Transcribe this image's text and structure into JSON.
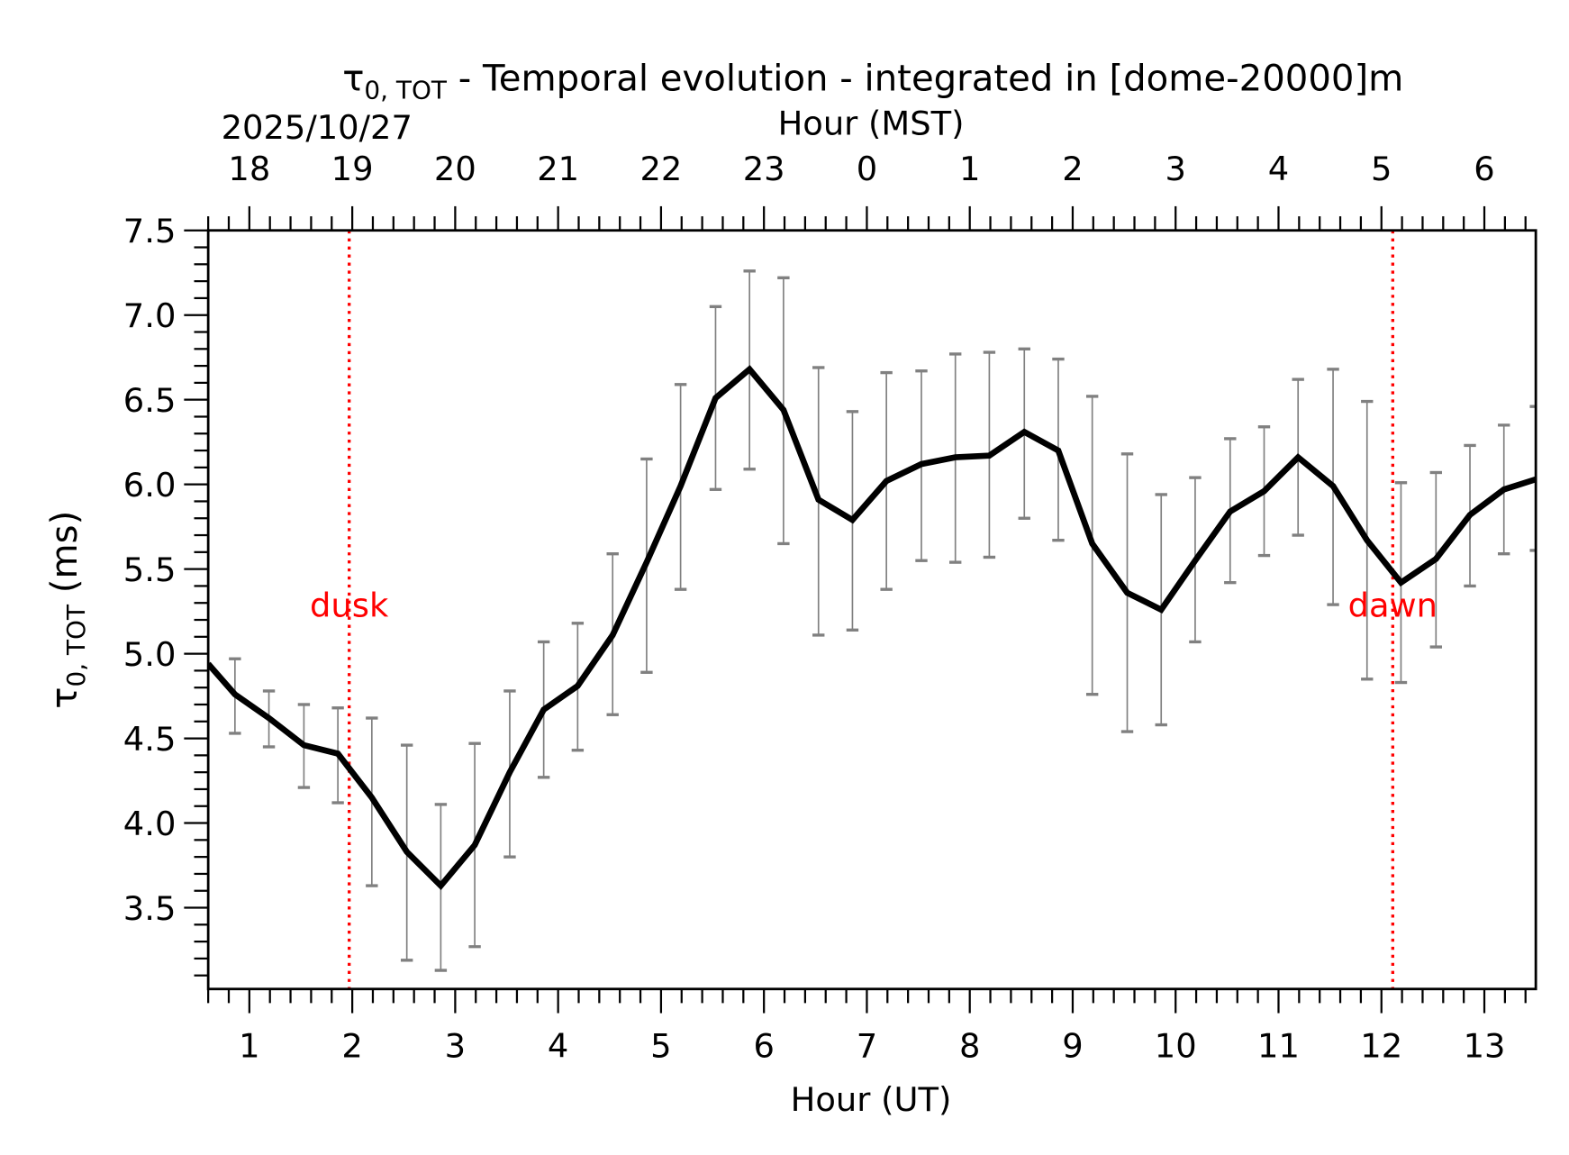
{
  "chart_data": {
    "type": "line",
    "title": {
      "symbol": "τ",
      "subscript": "0, TOT",
      "rest": " - Temporal evolution - integrated in [dome-20000]m"
    },
    "xlabel": "Hour (UT)",
    "x2label": "Hour (MST)",
    "date_label": "2025/10/27",
    "ylabel": {
      "symbol": "τ",
      "subscript": "0, TOT",
      "rest": " (ms)"
    },
    "xlim": [
      0.6,
      13.5
    ],
    "ylim": [
      3.02,
      7.5
    ],
    "x_ticks": [
      1,
      2,
      3,
      4,
      5,
      6,
      7,
      8,
      9,
      10,
      11,
      12,
      13
    ],
    "x2_tick_labels": [
      "18",
      "19",
      "20",
      "21",
      "22",
      "23",
      "0",
      "1",
      "2",
      "3",
      "4",
      "5",
      "6"
    ],
    "y_ticks": [
      "3.5",
      "4.0",
      "4.5",
      "5.0",
      "5.5",
      "6.0",
      "6.5",
      "7.0",
      "7.5"
    ],
    "grid": false,
    "line_color": "#000000",
    "errorbar_color": "#808080",
    "series": [
      {
        "x": [
          0.6,
          0.86,
          1.19,
          1.53,
          1.86,
          2.19,
          2.53,
          2.86,
          3.19,
          3.53,
          3.86,
          4.19,
          4.53,
          4.86,
          5.19,
          5.53,
          5.86,
          6.19,
          6.53,
          6.86,
          7.19,
          7.53,
          7.86,
          8.19,
          8.53,
          8.86,
          9.19,
          9.53,
          9.86,
          10.19,
          10.53,
          10.86,
          11.19,
          11.53,
          11.86,
          12.19,
          12.53,
          12.86,
          13.19,
          13.5
        ],
        "y": [
          4.94,
          4.76,
          4.62,
          4.46,
          4.41,
          4.15,
          3.83,
          3.63,
          3.87,
          4.3,
          4.67,
          4.81,
          5.11,
          5.54,
          5.99,
          6.51,
          6.68,
          6.44,
          5.91,
          5.79,
          6.02,
          6.12,
          6.16,
          6.17,
          6.31,
          6.2,
          5.65,
          5.36,
          5.26,
          5.55,
          5.84,
          5.96,
          6.16,
          5.99,
          5.67,
          5.42,
          5.56,
          5.82,
          5.97,
          6.03
        ],
        "err_upper": [
          null,
          4.97,
          4.78,
          4.7,
          4.68,
          4.62,
          4.46,
          4.11,
          4.47,
          4.78,
          5.07,
          5.18,
          5.59,
          6.15,
          6.59,
          7.05,
          7.26,
          7.22,
          6.69,
          6.43,
          6.66,
          6.67,
          6.77,
          6.78,
          6.8,
          6.74,
          6.52,
          6.18,
          5.94,
          6.04,
          6.27,
          6.34,
          6.62,
          6.68,
          6.49,
          6.01,
          6.07,
          6.23,
          6.35,
          6.46
        ],
        "err_lower": [
          null,
          4.53,
          4.45,
          4.21,
          4.12,
          3.63,
          3.19,
          3.13,
          3.27,
          3.8,
          4.27,
          4.43,
          4.64,
          4.89,
          5.38,
          5.97,
          6.09,
          5.65,
          5.11,
          5.14,
          5.38,
          5.55,
          5.54,
          5.57,
          5.8,
          5.67,
          4.76,
          4.54,
          4.58,
          5.07,
          5.42,
          5.58,
          5.7,
          5.29,
          4.85,
          4.83,
          5.04,
          5.4,
          5.59,
          5.61
        ]
      }
    ],
    "annotations": [
      {
        "text": "dusk",
        "x": 1.97,
        "color": "#ff0000"
      },
      {
        "text": "dawn",
        "x": 12.11,
        "color": "#ff0000"
      }
    ]
  }
}
